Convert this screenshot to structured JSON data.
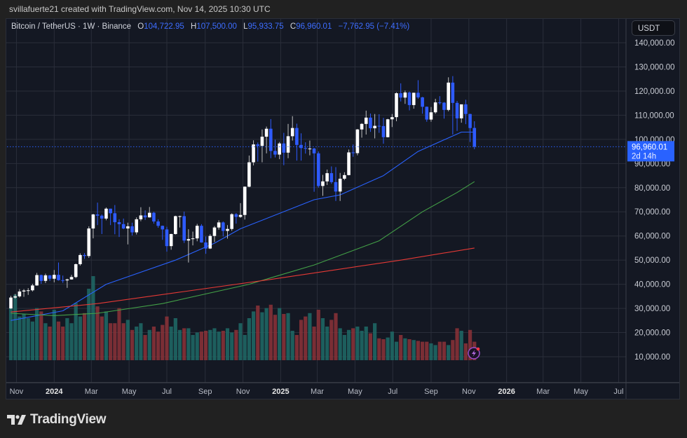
{
  "credit": "svillafuerte21 created with TradingView.com, Nov 14, 2025 10:30 UTC",
  "legend": {
    "symbol": "Bitcoin / TetherUS · 1W · Binance",
    "o_label": "O",
    "o": "104,722.95",
    "h_label": "H",
    "h": "107,500.00",
    "l_label": "L",
    "l": "95,933.75",
    "c_label": "C",
    "c": "96,960.01",
    "change": "−7,762.95 (−7.41%)"
  },
  "price_axis": {
    "currency": "USDT",
    "last_price": "96,960.01",
    "countdown": "2d 14h"
  },
  "logo": {
    "text": "TradingView"
  },
  "colors": {
    "up_candle": "#ffffff",
    "down_candle": "#2e5bff",
    "volume_up": "#1f6b67",
    "volume_down": "#8c3338",
    "ma_blue": "#2962ff",
    "ma_green": "#43a047",
    "ma_red": "#e53935",
    "last_price": "#2962ff",
    "background": "#141823",
    "grid": "#2a2e3a"
  },
  "chart_data": {
    "type": "candlestick",
    "symbol": "Bitcoin / TetherUS",
    "interval": "1W",
    "exchange": "Binance",
    "first_week": "2023-10-23",
    "ylim": [
      10000,
      145000
    ],
    "y_ticks": [
      "10,000.00",
      "20,000.00",
      "30,000.00",
      "40,000.00",
      "50,000.00",
      "60,000.00",
      "70,000.00",
      "80,000.00",
      "90,000.00",
      "100,000.00",
      "110,000.00",
      "120,000.00",
      "130,000.00",
      "140,000.00"
    ],
    "x_ticks": [
      {
        "label": "Nov",
        "date": "2023-11-01",
        "bold": false
      },
      {
        "label": "2024",
        "date": "2024-01-01",
        "bold": true
      },
      {
        "label": "Mar",
        "date": "2024-03-01",
        "bold": false
      },
      {
        "label": "May",
        "date": "2024-05-01",
        "bold": false
      },
      {
        "label": "Jul",
        "date": "2024-07-01",
        "bold": false
      },
      {
        "label": "Sep",
        "date": "2024-09-01",
        "bold": false
      },
      {
        "label": "Nov",
        "date": "2024-11-01",
        "bold": false
      },
      {
        "label": "2025",
        "date": "2025-01-01",
        "bold": true
      },
      {
        "label": "Mar",
        "date": "2025-03-01",
        "bold": false
      },
      {
        "label": "May",
        "date": "2025-05-01",
        "bold": false
      },
      {
        "label": "Jul",
        "date": "2025-07-01",
        "bold": false
      },
      {
        "label": "Sep",
        "date": "2025-09-01",
        "bold": false
      },
      {
        "label": "Nov",
        "date": "2025-11-01",
        "bold": false
      },
      {
        "label": "2026",
        "date": "2026-01-01",
        "bold": true
      },
      {
        "label": "Mar",
        "date": "2026-03-01",
        "bold": false
      },
      {
        "label": "May",
        "date": "2026-05-01",
        "bold": false
      },
      {
        "label": "Jul",
        "date": "2026-07-01",
        "bold": false
      }
    ],
    "grid": true,
    "ohlc": [
      [
        30000,
        35200,
        29800,
        34500
      ],
      [
        34500,
        36000,
        34000,
        35000
      ],
      [
        35000,
        38000,
        34500,
        37000
      ],
      [
        37000,
        38000,
        34800,
        37400
      ],
      [
        37400,
        38400,
        35600,
        37500
      ],
      [
        37500,
        40200,
        37000,
        39500
      ],
      [
        39500,
        44700,
        39400,
        43800
      ],
      [
        43800,
        44000,
        40200,
        41400
      ],
      [
        41400,
        44400,
        40500,
        43700
      ],
      [
        43700,
        43800,
        41400,
        42300
      ],
      [
        42300,
        45900,
        40800,
        43900
      ],
      [
        43900,
        49000,
        41500,
        41700
      ],
      [
        41700,
        43600,
        40600,
        41600
      ],
      [
        41600,
        42300,
        38500,
        42000
      ],
      [
        42000,
        43900,
        41900,
        43000
      ],
      [
        43000,
        48600,
        42500,
        48300
      ],
      [
        48300,
        52800,
        47700,
        52100
      ],
      [
        52100,
        52900,
        50500,
        51700
      ],
      [
        51700,
        64000,
        50900,
        63100
      ],
      [
        63100,
        69200,
        59000,
        68900
      ],
      [
        68900,
        73800,
        64500,
        68400
      ],
      [
        68400,
        68900,
        60800,
        67200
      ],
      [
        67200,
        71800,
        66500,
        71300
      ],
      [
        71300,
        71300,
        64500,
        69400
      ],
      [
        69400,
        72800,
        60700,
        65700
      ],
      [
        65700,
        66900,
        59600,
        64900
      ],
      [
        64900,
        67200,
        62800,
        63100
      ],
      [
        63100,
        65500,
        56500,
        64000
      ],
      [
        64000,
        65500,
        60200,
        61500
      ],
      [
        61500,
        67700,
        60600,
        66900
      ],
      [
        66900,
        71900,
        66100,
        68500
      ],
      [
        68500,
        70600,
        66600,
        67700
      ],
      [
        67700,
        72000,
        67600,
        69600
      ],
      [
        69600,
        70000,
        65100,
        66000
      ],
      [
        66000,
        66900,
        63400,
        64200
      ],
      [
        64200,
        64300,
        58400,
        62700
      ],
      [
        62700,
        63800,
        53500,
        55800
      ],
      [
        55800,
        60900,
        54300,
        60800
      ],
      [
        60800,
        68400,
        60600,
        68200
      ],
      [
        68200,
        68400,
        63500,
        68200
      ],
      [
        68200,
        70100,
        57100,
        58100
      ],
      [
        58100,
        62800,
        49000,
        58700
      ],
      [
        58700,
        61800,
        56100,
        59000
      ],
      [
        59000,
        65000,
        57800,
        64200
      ],
      [
        64200,
        64900,
        57200,
        57300
      ],
      [
        57300,
        59800,
        52600,
        54800
      ],
      [
        54800,
        60700,
        54600,
        60000
      ],
      [
        60000,
        64100,
        57500,
        63500
      ],
      [
        63500,
        66500,
        62600,
        65600
      ],
      [
        65600,
        66000,
        59800,
        62100
      ],
      [
        62100,
        64500,
        58900,
        62900
      ],
      [
        62900,
        69400,
        62100,
        69000
      ],
      [
        69000,
        69500,
        65100,
        67900
      ],
      [
        67900,
        73600,
        67500,
        68700
      ],
      [
        68700,
        80500,
        66800,
        80400
      ],
      [
        80400,
        93300,
        80200,
        90500
      ],
      [
        90500,
        99600,
        89200,
        97900
      ],
      [
        97900,
        98700,
        90800,
        97300
      ],
      [
        97300,
        104100,
        90500,
        101100
      ],
      [
        101100,
        105300,
        94200,
        104400
      ],
      [
        104400,
        108400,
        92200,
        95200
      ],
      [
        95200,
        99900,
        92500,
        93700
      ],
      [
        93700,
        98900,
        91800,
        98300
      ],
      [
        98300,
        102700,
        89300,
        94500
      ],
      [
        94500,
        106400,
        92200,
        101300
      ],
      [
        101300,
        109600,
        99500,
        104700
      ],
      [
        104700,
        106500,
        91200,
        97700
      ],
      [
        97700,
        102500,
        91200,
        96400
      ],
      [
        96400,
        98800,
        94100,
        96100
      ],
      [
        96100,
        99500,
        93400,
        96200
      ],
      [
        96200,
        96500,
        78300,
        94200
      ],
      [
        94200,
        95000,
        80000,
        80700
      ],
      [
        80700,
        85300,
        76600,
        82600
      ],
      [
        82600,
        87500,
        81100,
        86000
      ],
      [
        86000,
        88800,
        81600,
        82300
      ],
      [
        82300,
        88500,
        74500,
        78400
      ],
      [
        78400,
        86100,
        74500,
        83700
      ],
      [
        83700,
        86400,
        83100,
        85200
      ],
      [
        85200,
        95800,
        85100,
        94600
      ],
      [
        94600,
        97900,
        92800,
        94300
      ],
      [
        94300,
        104300,
        93400,
        104100
      ],
      [
        104100,
        106700,
        100700,
        106400
      ],
      [
        106400,
        111900,
        102000,
        109000
      ],
      [
        109000,
        110700,
        103100,
        104600
      ],
      [
        104600,
        110500,
        100400,
        105600
      ],
      [
        105600,
        110400,
        102700,
        105500
      ],
      [
        105500,
        108900,
        98200,
        100900
      ],
      [
        100900,
        108500,
        100800,
        108300
      ],
      [
        108300,
        110500,
        105100,
        109200
      ],
      [
        109200,
        119500,
        107500,
        119100
      ],
      [
        119100,
        123200,
        115700,
        117300
      ],
      [
        117300,
        120200,
        114700,
        119400
      ],
      [
        119400,
        119800,
        112000,
        114200
      ],
      [
        114200,
        119300,
        112700,
        119300
      ],
      [
        119300,
        124500,
        116800,
        117400
      ],
      [
        117400,
        117600,
        110600,
        113500
      ],
      [
        113500,
        113600,
        107300,
        108200
      ],
      [
        108200,
        113400,
        107300,
        111200
      ],
      [
        111200,
        116800,
        110600,
        115300
      ],
      [
        115300,
        117900,
        114400,
        115200
      ],
      [
        115200,
        115400,
        108600,
        112200
      ],
      [
        112200,
        125700,
        111600,
        123500
      ],
      [
        123500,
        126200,
        102000,
        115100
      ],
      [
        115100,
        115900,
        103500,
        108700
      ],
      [
        108700,
        114000,
        106900,
        114500
      ],
      [
        114500,
        116400,
        106300,
        110500
      ],
      [
        110500,
        110600,
        98900,
        104700
      ],
      [
        104722.95,
        107500,
        95933.75,
        96960.01
      ]
    ],
    "volume_relative_pct": [
      62,
      78,
      52,
      55,
      50,
      46,
      62,
      58,
      44,
      40,
      60,
      46,
      40,
      50,
      44,
      68,
      52,
      56,
      85,
      100,
      64,
      52,
      58,
      44,
      44,
      62,
      44,
      48,
      36,
      40,
      44,
      30,
      36,
      40,
      34,
      42,
      52,
      40,
      50,
      36,
      38,
      38,
      30,
      33,
      34,
      35,
      36,
      38,
      34,
      35,
      38,
      33,
      36,
      44,
      30,
      50,
      58,
      65,
      57,
      62,
      66,
      54,
      62,
      55,
      56,
      35,
      30,
      48,
      52,
      56,
      40,
      60,
      50,
      40,
      48,
      56,
      38,
      30,
      36,
      38,
      40,
      35,
      40,
      32,
      44,
      26,
      25,
      27,
      34,
      22,
      30,
      26,
      25,
      24,
      23,
      22,
      22,
      20,
      18,
      22,
      22,
      18,
      24,
      38,
      35,
      20,
      36,
      22
    ],
    "moving_averages": [
      {
        "color": "blue",
        "points": [
          [
            0,
            25000
          ],
          [
            12,
            29000
          ],
          [
            22,
            40000
          ],
          [
            38,
            50000
          ],
          [
            47,
            57000
          ],
          [
            53,
            63000
          ],
          [
            70,
            75000
          ],
          [
            76,
            77000
          ],
          [
            86,
            85000
          ],
          [
            94,
            95000
          ],
          [
            104,
            103000
          ],
          [
            107,
            103000
          ]
        ]
      },
      {
        "color": "green",
        "points": [
          [
            0,
            28000
          ],
          [
            10,
            27000
          ],
          [
            20,
            28000
          ],
          [
            35,
            32000
          ],
          [
            55,
            40000
          ],
          [
            70,
            48000
          ],
          [
            85,
            58000
          ],
          [
            95,
            70000
          ],
          [
            103,
            78000
          ],
          [
            107,
            82500
          ]
        ]
      },
      {
        "color": "red",
        "points": [
          [
            0,
            28500
          ],
          [
            20,
            32000
          ],
          [
            40,
            37000
          ],
          [
            60,
            42000
          ],
          [
            75,
            46000
          ],
          [
            90,
            50000
          ],
          [
            107,
            55000
          ]
        ]
      }
    ]
  }
}
